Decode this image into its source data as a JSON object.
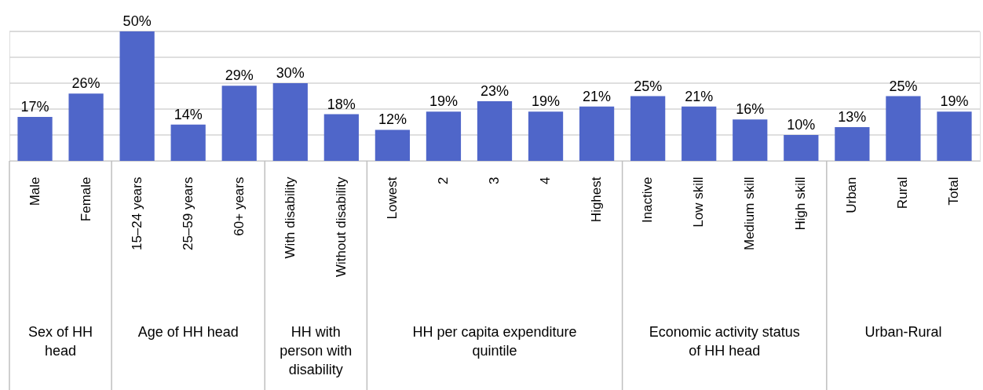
{
  "chart_data": {
    "type": "bar",
    "categories": [
      "Male",
      "Female",
      "15–24 years",
      "25–59 years",
      "60+ years",
      "With disability",
      "Without disability",
      "Lowest",
      "2",
      "3",
      "4",
      "Highest",
      "Inactive",
      "Low skill",
      "Medium skill",
      "High skill",
      "Urban",
      "Rural",
      "Total"
    ],
    "values": [
      17,
      26,
      50,
      14,
      29,
      30,
      18,
      12,
      19,
      23,
      19,
      21,
      25,
      21,
      16,
      10,
      13,
      25,
      19
    ],
    "value_labels": [
      "17%",
      "26%",
      "50%",
      "14%",
      "29%",
      "30%",
      "18%",
      "12%",
      "19%",
      "23%",
      "19%",
      "21%",
      "25%",
      "21%",
      "16%",
      "10%",
      "13%",
      "25%",
      "19%"
    ],
    "color": "#4f66c9",
    "ylim": [
      0,
      50
    ],
    "yticks": [
      {
        "value": 0,
        "label": null
      },
      {
        "value": 10,
        "label": null
      },
      {
        "value": 20,
        "label": null
      },
      {
        "value": 30,
        "label": null
      },
      {
        "value": 40,
        "label": null
      },
      {
        "value": 50,
        "label": null
      }
    ],
    "tick_labels": "x",
    "grid": "y",
    "annotations": [
      "Sex of HH head",
      "Age of HH head",
      "HH with person with disability",
      "HH per capita expenditure quintile",
      "Economic activity status of HH head",
      "Urban-Rural"
    ]
  }
}
